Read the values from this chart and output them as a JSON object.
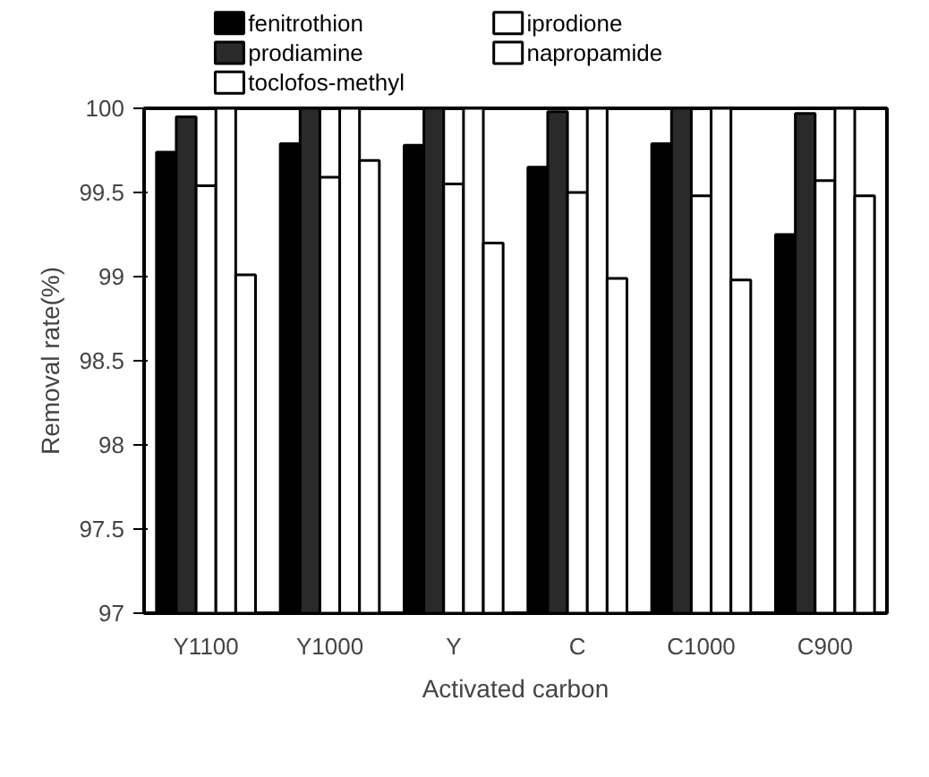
{
  "chart_data": {
    "type": "bar",
    "xlabel": "Activated carbon",
    "ylabel": "Removal rate(%)",
    "categories": [
      "Y1100",
      "Y1000",
      "Y",
      "C",
      "C1000",
      "C900"
    ],
    "series": [
      {
        "name": "fenitrothion",
        "color": "#000000",
        "values": [
          99.74,
          99.79,
          99.78,
          99.65,
          99.79,
          99.25
        ]
      },
      {
        "name": "prodiamine",
        "color": "#2a2a2a",
        "values": [
          99.95,
          100,
          100,
          99.98,
          100,
          99.97
        ]
      },
      {
        "name": "toclofos-methyl",
        "color": "#ffffff",
        "values": [
          99.54,
          99.59,
          99.55,
          99.5,
          99.48,
          99.57
        ]
      },
      {
        "name": "iprodione",
        "color": "#ffffff",
        "values": [
          100,
          100,
          100,
          100,
          100,
          100
        ]
      },
      {
        "name": "napropamide",
        "color": "#ffffff",
        "values": [
          99.01,
          99.69,
          99.2,
          98.99,
          98.98,
          99.48
        ]
      }
    ],
    "ylim": [
      97,
      100
    ],
    "yticks": [
      97,
      97.5,
      98,
      98.5,
      99,
      99.5,
      100
    ],
    "grid": false,
    "legend": "top"
  }
}
